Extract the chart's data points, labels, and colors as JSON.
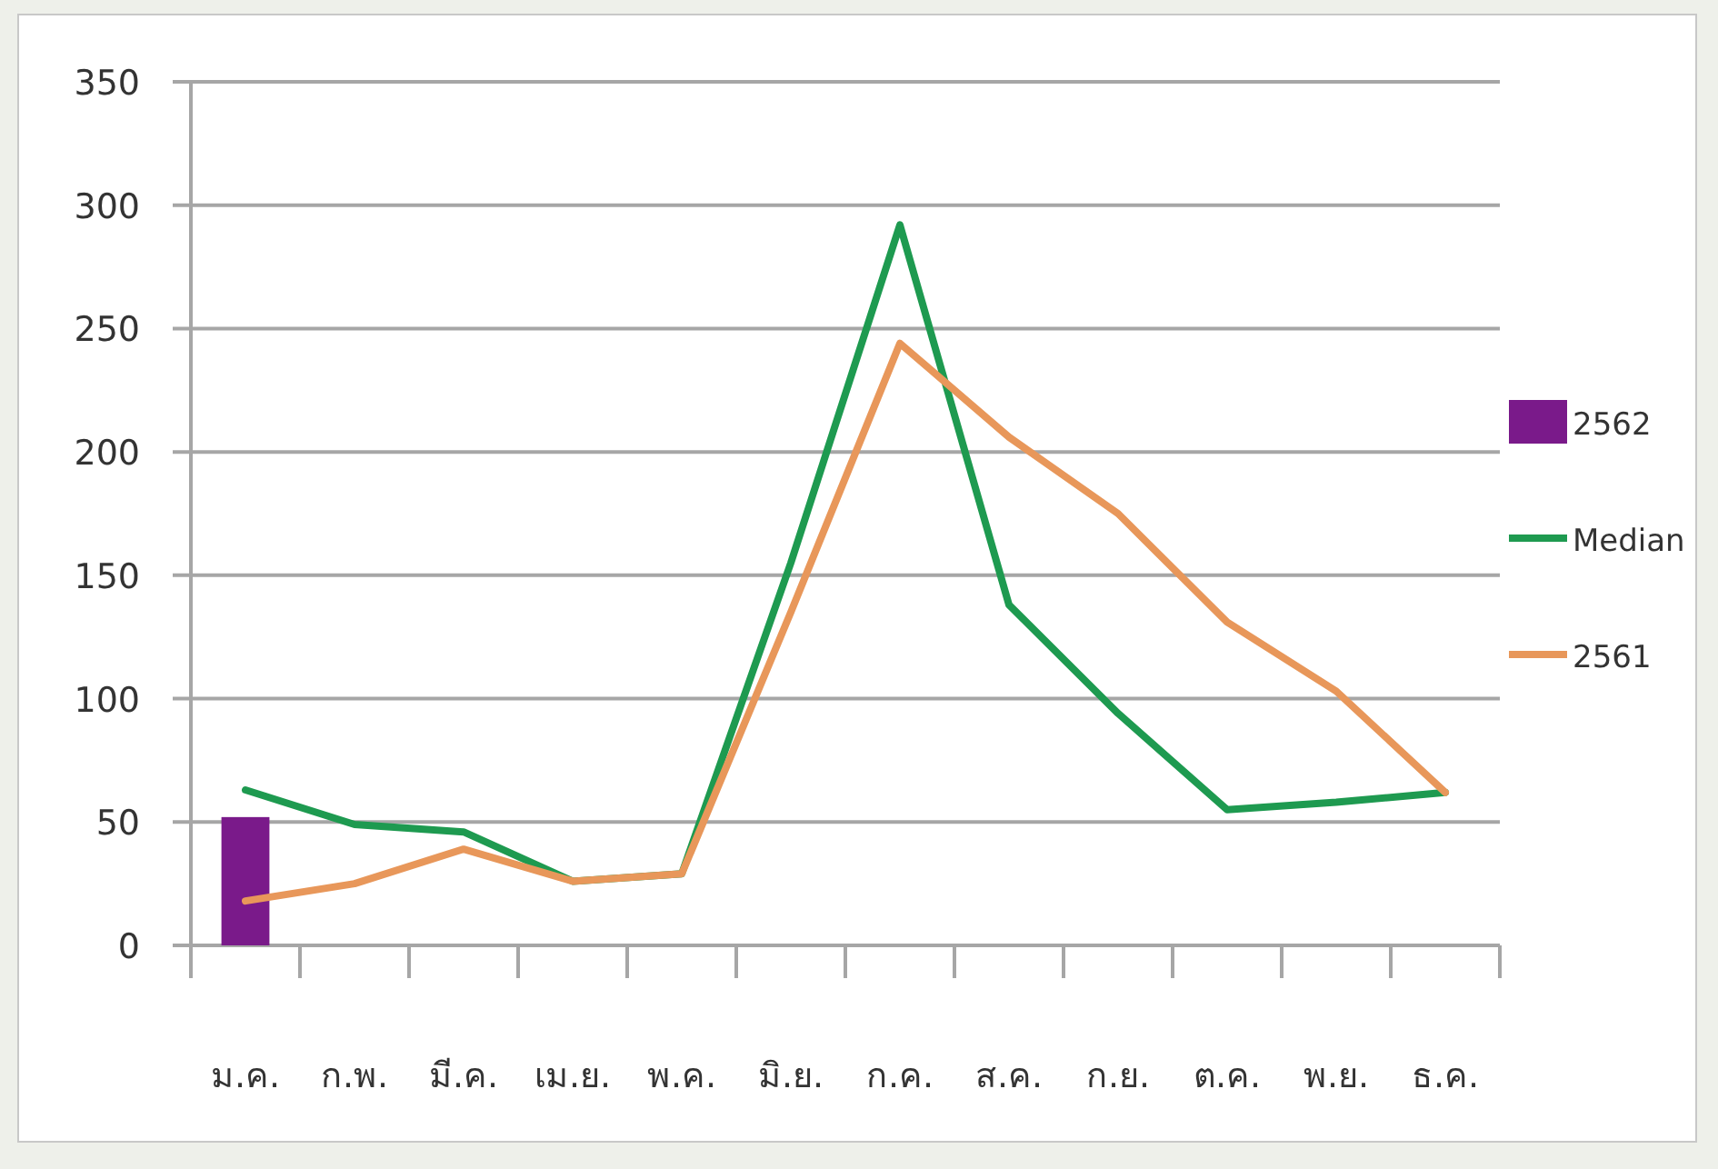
{
  "chart_data": {
    "type": "line",
    "categories": [
      "ม.ค.",
      "ก.พ.",
      "มี.ค.",
      "เม.ย.",
      "พ.ค.",
      "มิ.ย.",
      "ก.ค.",
      "ส.ค.",
      "ก.ย.",
      "ต.ค.",
      "พ.ย.",
      "ธ.ค."
    ],
    "series": [
      {
        "name": "2562",
        "type": "bar",
        "color": "#7a1a8a",
        "values": [
          52,
          null,
          null,
          null,
          null,
          null,
          null,
          null,
          null,
          null,
          null,
          null
        ]
      },
      {
        "name": "Median",
        "color": "#1e9a50",
        "values": [
          63,
          49,
          46,
          26,
          29,
          155,
          292,
          138,
          94,
          55,
          58,
          62
        ]
      },
      {
        "name": "2561",
        "color": "#e8975a",
        "values": [
          18,
          25,
          39,
          26,
          29,
          135,
          244,
          206,
          175,
          131,
          103,
          62
        ]
      }
    ],
    "ylim": [
      0,
      350
    ],
    "yticks": [
      0,
      50,
      100,
      150,
      200,
      250,
      300,
      350
    ],
    "grid": "y",
    "legend": "right",
    "line_style": "solid",
    "marker": "none"
  }
}
